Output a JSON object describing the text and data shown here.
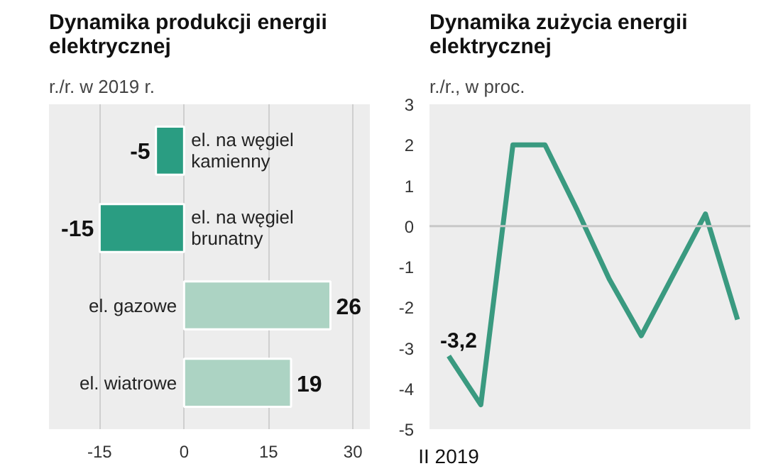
{
  "chart_data": [
    {
      "type": "bar",
      "orientation": "horizontal",
      "title": "Dynamika produkcji energii elektrycznej",
      "subtitle": "r./r. w 2019 r.",
      "categories": [
        "el. na węgiel kamienny",
        "el. na węgiel brunatny",
        "el. gazowe",
        "el. wiatrowe"
      ],
      "values": [
        -5,
        -15,
        26,
        19
      ],
      "colors": [
        "#2a9d82",
        "#2a9d82",
        "#acd3c3",
        "#acd3c3"
      ],
      "xlim": [
        -24,
        33
      ],
      "xticks": [
        -15,
        0,
        15,
        30
      ],
      "grid": "x",
      "data_labels": true
    },
    {
      "type": "line",
      "title": "Dynamika zużycia energii elektrycznej",
      "subtitle": "r./r., w proc.",
      "categories": [
        "II 2019",
        null,
        null,
        null,
        null,
        null,
        null,
        null,
        null,
        null
      ],
      "series": [
        {
          "color": "#3a9a80",
          "values": [
            -3.2,
            -4.4,
            2.0,
            2.0,
            0.4,
            -1.3,
            -2.7,
            -1.2,
            0.3,
            -2.3
          ],
          "value_labels": [
            "-3,2",
            null,
            null,
            null,
            null,
            null,
            null,
            null,
            null,
            null
          ]
        }
      ],
      "ylim": [
        -5,
        3
      ],
      "yticks": [
        3,
        2,
        1,
        0,
        -1,
        -2,
        -3,
        -4,
        -5
      ],
      "ref_lines": [
        {
          "axis": "y",
          "value": 0,
          "color": "#c8c8c8"
        }
      ],
      "grid": false
    }
  ]
}
